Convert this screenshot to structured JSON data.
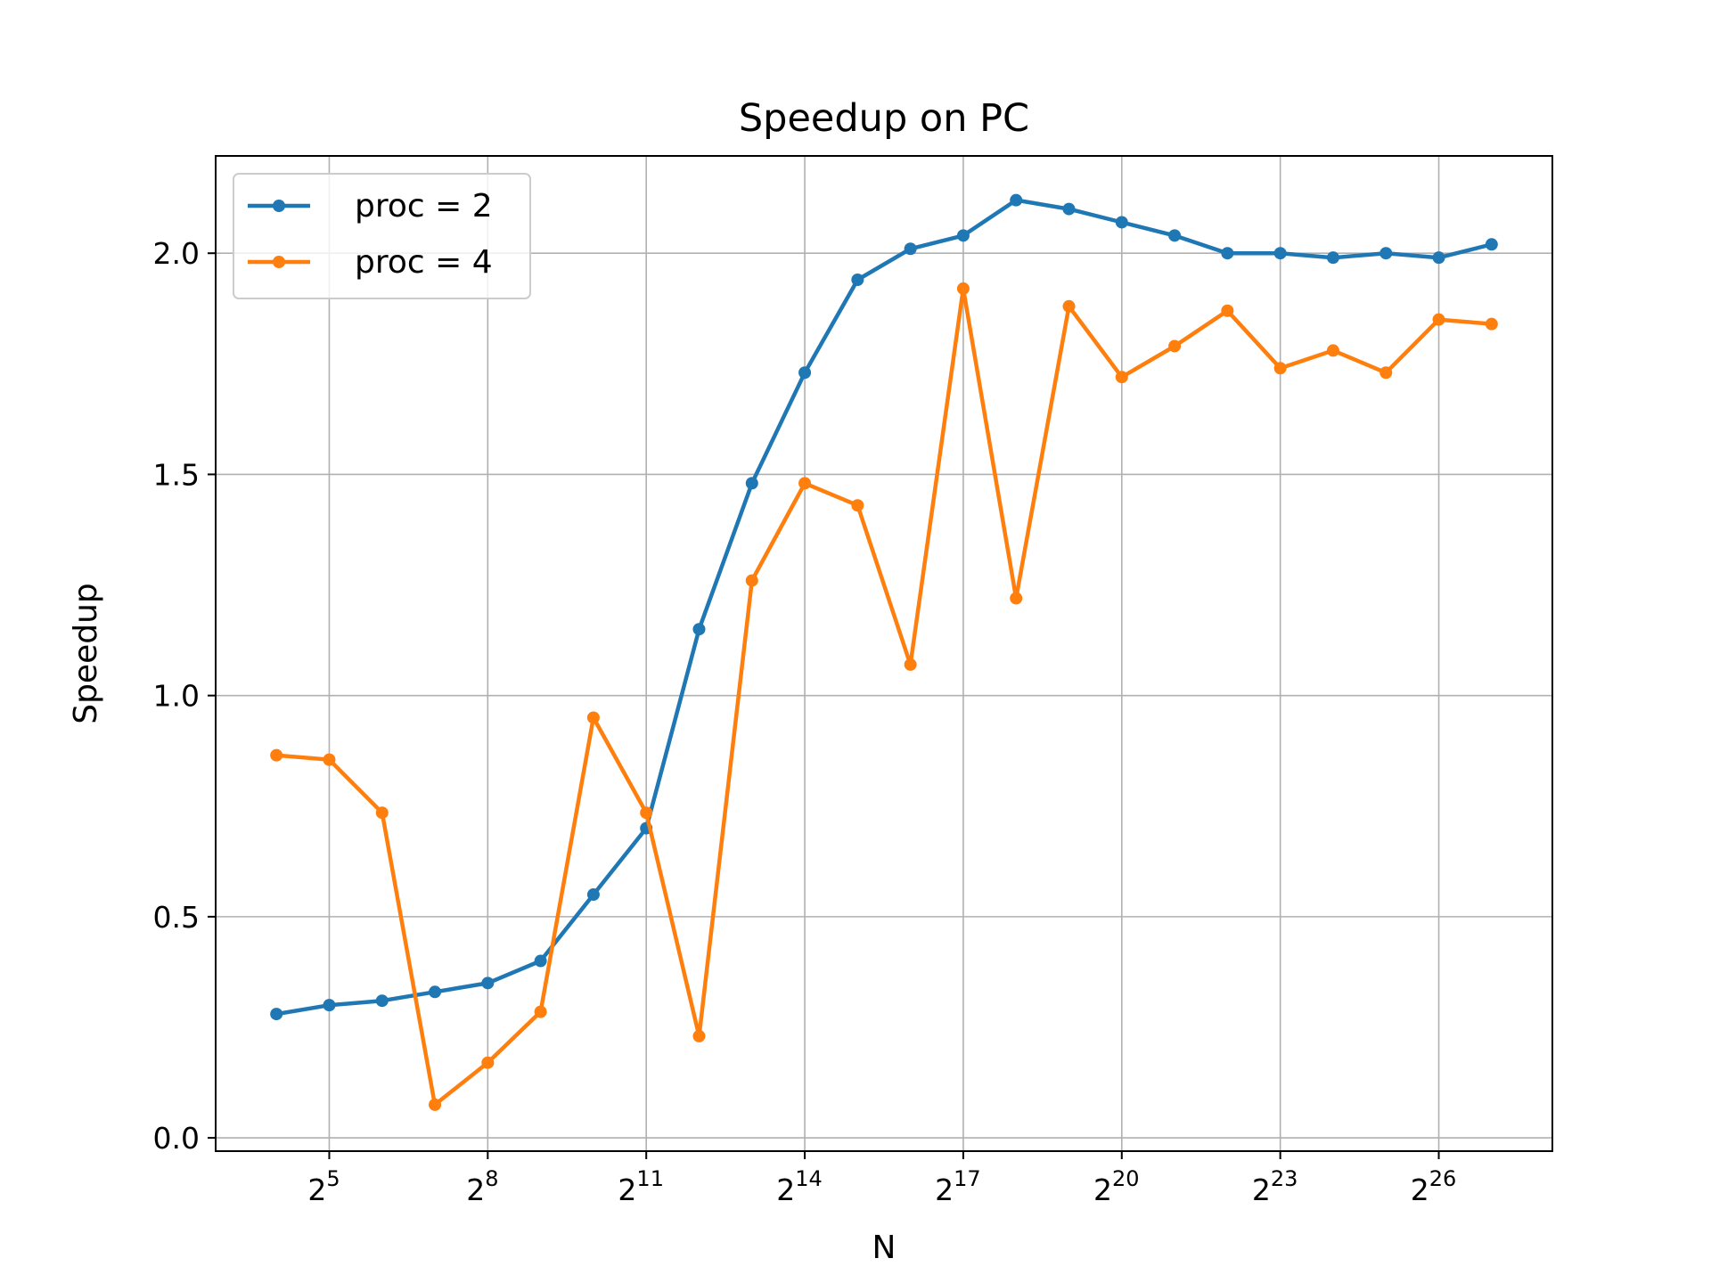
{
  "chart_data": {
    "type": "line",
    "title": "Speedup on PC",
    "xlabel": "N",
    "ylabel": "Speedup",
    "xscale": "log2",
    "x": [
      16,
      32,
      64,
      128,
      256,
      512,
      1024,
      2048,
      4096,
      8192,
      16384,
      32768,
      65536,
      131072,
      262144,
      524288,
      1048576,
      2097152,
      4194304,
      8388608,
      16777216,
      33554432,
      67108864,
      134217728
    ],
    "xticks": [
      {
        "base": "2",
        "exp": "5",
        "value": 32
      },
      {
        "base": "2",
        "exp": "8",
        "value": 256
      },
      {
        "base": "2",
        "exp": "11",
        "value": 2048
      },
      {
        "base": "2",
        "exp": "14",
        "value": 16384
      },
      {
        "base": "2",
        "exp": "17",
        "value": 131072
      },
      {
        "base": "2",
        "exp": "20",
        "value": 1048576
      },
      {
        "base": "2",
        "exp": "23",
        "value": 8388608
      },
      {
        "base": "2",
        "exp": "26",
        "value": 67108864
      }
    ],
    "yticks": [
      "0.0",
      "0.5",
      "1.0",
      "1.5",
      "2.0"
    ],
    "ylim": [
      -0.03,
      2.22
    ],
    "grid": true,
    "legend_position": "upper-left",
    "series": [
      {
        "name": "proc = 2",
        "color": "#1f77b4",
        "values": [
          0.28,
          0.3,
          0.31,
          0.33,
          0.35,
          0.4,
          0.55,
          0.7,
          1.15,
          1.48,
          1.73,
          1.94,
          2.01,
          2.04,
          2.12,
          2.1,
          2.07,
          2.04,
          2.0,
          2.0,
          1.99,
          2.0,
          1.99,
          2.02
        ]
      },
      {
        "name": "proc = 4",
        "color": "#ff7f0e",
        "values": [
          0.865,
          0.855,
          0.735,
          0.075,
          0.17,
          0.285,
          0.95,
          0.735,
          0.23,
          1.26,
          1.48,
          1.43,
          1.07,
          1.92,
          1.22,
          1.88,
          1.72,
          1.79,
          1.87,
          1.74,
          1.78,
          1.73,
          1.85,
          1.84
        ]
      }
    ]
  }
}
